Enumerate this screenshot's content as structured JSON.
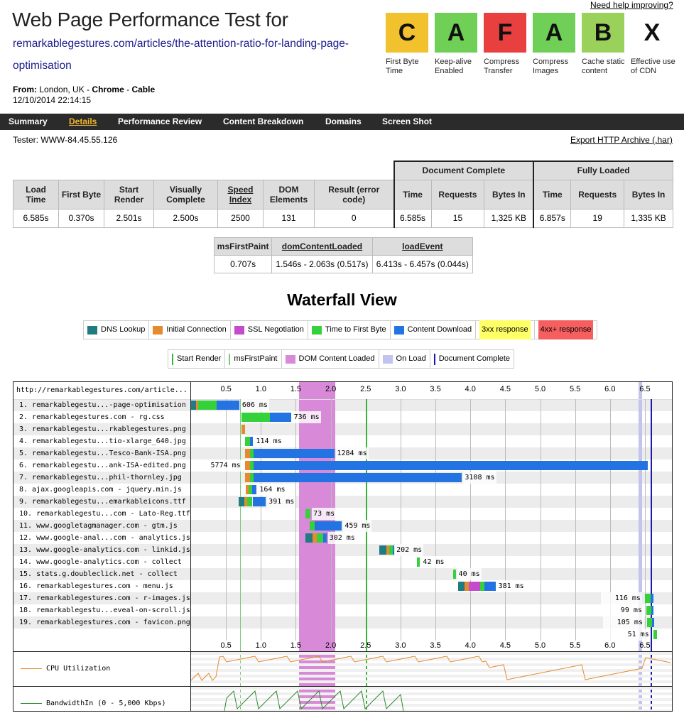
{
  "help_link": "Need help improving?",
  "title": "Web Page Performance Test for",
  "url_line1": "remarkablegestures.com/articles/the-attention-ratio-for-landing-page-",
  "url_line2": "optimisation",
  "from_label": "From:",
  "from_location": "London, UK -",
  "browser": "Chrome",
  "dash": "-",
  "connection": "Cable",
  "datetime": "12/10/2014 22:14:15",
  "grades": [
    {
      "letter": "C",
      "label": "First Byte Time",
      "color": "#f2c12e"
    },
    {
      "letter": "A",
      "label": "Keep-alive Enabled",
      "color": "#6fcf57"
    },
    {
      "letter": "F",
      "label": "Compress Transfer",
      "color": "#e8403f"
    },
    {
      "letter": "A",
      "label": "Compress Images",
      "color": "#6fcf57"
    },
    {
      "letter": "B",
      "label": "Cache static content",
      "color": "#9ad15a"
    },
    {
      "letter": "X",
      "label": "Effective use of CDN",
      "color": "#ffffff"
    }
  ],
  "nav": [
    "Summary",
    "Details",
    "Performance Review",
    "Content Breakdown",
    "Domains",
    "Screen Shot"
  ],
  "nav_active": "Details",
  "tester": "Tester: WWW-84.45.55.126",
  "export": "Export HTTP Archive (.har)",
  "results": {
    "group_doc": "Document Complete",
    "group_full": "Fully Loaded",
    "headers": [
      "Load Time",
      "First Byte",
      "Start Render",
      "Visually Complete",
      "Speed Index",
      "DOM Elements",
      "Result (error code)"
    ],
    "doc_headers": [
      "Time",
      "Requests",
      "Bytes In"
    ],
    "full_headers": [
      "Time",
      "Requests",
      "Bytes In"
    ],
    "values": [
      "6.585s",
      "0.370s",
      "2.501s",
      "2.500s",
      "2500",
      "131",
      "0"
    ],
    "doc_values": [
      "6.585s",
      "15",
      "1,325 KB"
    ],
    "full_values": [
      "6.857s",
      "19",
      "1,335 KB"
    ]
  },
  "timings": {
    "headers": [
      "msFirstPaint",
      "domContentLoaded",
      "loadEvent"
    ],
    "values": [
      "0.707s",
      "1.546s - 2.063s (0.517s)",
      "6.413s - 6.457s (0.044s)"
    ]
  },
  "waterfall_title": "Waterfall View",
  "legend1": [
    {
      "label": "DNS Lookup",
      "color": "#1f7c83"
    },
    {
      "label": "Initial Connection",
      "color": "#e68a2e"
    },
    {
      "label": "SSL Negotiation",
      "color": "#c44ccc"
    },
    {
      "label": "Time to First Byte",
      "color": "#35d13b"
    },
    {
      "label": "Content Download",
      "color": "#2374e2"
    },
    {
      "label": "3xx response",
      "color": "#ffff66"
    },
    {
      "label": "4xx+ response",
      "color": "#f55f5f"
    }
  ],
  "legend2": [
    {
      "label": "Start Render",
      "color": "#37b337"
    },
    {
      "label": "msFirstPaint",
      "color": "#7ec97e"
    },
    {
      "label": "DOM Content Loaded",
      "color": "#d88ad8"
    },
    {
      "label": "On Load",
      "color": "#c3c3ef"
    },
    {
      "label": "Document Complete",
      "color": "#1b1ba8"
    }
  ],
  "waterfall": {
    "url_header": "http://remarkablegestures.com/article...",
    "ticks": [
      "0.5",
      "1.0",
      "1.5",
      "2.0",
      "2.5",
      "3.0",
      "3.5",
      "4.0",
      "4.5",
      "5.0",
      "5.5",
      "6.0",
      "6.5"
    ],
    "rows": [
      {
        "label": "1. remarkablegestu...-page-optimisation",
        "start": 0.0,
        "dns": 0.07,
        "conn": 0.03,
        "ttfb": 0.27,
        "dl": 0.32,
        "ms": "606 ms",
        "lab_side": "right"
      },
      {
        "label": "2. remarkablegestures.com - rg.css",
        "start": 0.72,
        "dns": 0,
        "conn": 0,
        "ttfb": 0.41,
        "dl": 0.3,
        "ms": "736 ms",
        "lab_side": "right"
      },
      {
        "label": "3. remarkablegestu...rkablegestures.png",
        "start": 0.72,
        "dns": 0,
        "conn": 0.05,
        "ttfb": 0,
        "dl": 0,
        "ms": "",
        "lab_side": "right"
      },
      {
        "label": "4. remarkablegestu...tio-xlarge_640.jpg",
        "start": 0.77,
        "dns": 0,
        "conn": 0,
        "ttfb": 0.07,
        "dl": 0.05,
        "ms": "114 ms",
        "lab_side": "right"
      },
      {
        "label": "5. remarkablegestu...Tesco-Bank-ISA.png",
        "start": 0.77,
        "dns": 0,
        "conn": 0.07,
        "ttfb": 0.06,
        "dl": 1.15,
        "ms": "1284 ms",
        "lab_side": "right"
      },
      {
        "label": "6. remarkablegestu...ank-ISA-edited.png",
        "start": 0.77,
        "dns": 0,
        "conn": 0.07,
        "ttfb": 0.06,
        "dl": 5.64,
        "ms": "5774 ms",
        "lab_side": "left"
      },
      {
        "label": "7. remarkablegestu...phil-thornley.jpg",
        "start": 0.77,
        "dns": 0,
        "conn": 0.07,
        "ttfb": 0.06,
        "dl": 2.98,
        "ms": "3108 ms",
        "lab_side": "right"
      },
      {
        "label": "8. ajax.googleapis.com - jquery.min.js",
        "start": 0.78,
        "dns": 0,
        "conn": 0.04,
        "ttfb": 0.05,
        "dl": 0.07,
        "ms": "164 ms",
        "lab_side": "right"
      },
      {
        "label": "9. remarkablegestu...emarkableicons.ttf",
        "start": 0.68,
        "dns": 0.08,
        "conn": 0.04,
        "ttfb": 0.08,
        "dl": 0.19,
        "ms": "391 ms",
        "lab_side": "right"
      },
      {
        "label": "10. remarkablegestu...com - Lato-Reg.ttf",
        "start": 1.64,
        "dns": 0,
        "conn": 0,
        "ttfb": 0.07,
        "dl": 0,
        "ms": "73 ms",
        "lab_side": "right"
      },
      {
        "label": "11. www.googletagmanager.com - gtm.js",
        "start": 1.7,
        "dns": 0,
        "conn": 0,
        "ttfb": 0.07,
        "dl": 0.39,
        "ms": "459 ms",
        "lab_side": "right"
      },
      {
        "label": "12. www.google-anal...com - analytics.js",
        "start": 1.64,
        "dns": 0.1,
        "conn": 0.06,
        "ttfb": 0.09,
        "dl": 0.05,
        "ms": "302 ms",
        "lab_side": "right"
      },
      {
        "label": "13. www.google-analytics.com - linkid.js",
        "start": 2.7,
        "dns": 0.1,
        "conn": 0.04,
        "ttfb": 0.05,
        "dl": 0.01,
        "ms": "202 ms",
        "lab_side": "right"
      },
      {
        "label": "14. www.google-analytics.com - collect",
        "start": 3.24,
        "dns": 0,
        "conn": 0,
        "ttfb": 0.04,
        "dl": 0,
        "ms": "42 ms",
        "lab_side": "right"
      },
      {
        "label": "15. stats.g.doubleclick.net - collect",
        "start": 3.75,
        "dns": 0,
        "conn": 0,
        "ttfb": 0.04,
        "dl": 0,
        "ms": "40 ms",
        "lab_side": "right"
      },
      {
        "label": "16. remarkablegestures.com - menu.js",
        "start": 3.82,
        "dns": 0.1,
        "conn": 0.06,
        "ttfb": 0.06,
        "dl": 0.16,
        "ms": "381 ms",
        "lab_side": "right",
        "ssl": 0.16
      },
      {
        "label": "17. remarkablegestures.com - r-images.js",
        "start": 6.5,
        "dns": 0,
        "conn": 0,
        "ttfb": 0.08,
        "dl": 0.04,
        "ms": "116 ms",
        "lab_side": "left"
      },
      {
        "label": "18. remarkablegestu...eveal-on-scroll.js",
        "start": 6.52,
        "dns": 0,
        "conn": 0,
        "ttfb": 0.07,
        "dl": 0.03,
        "ms": "99 ms",
        "lab_side": "left"
      },
      {
        "label": "19. remarkablegestures.com - favicon.png",
        "start": 6.53,
        "dns": 0,
        "conn": 0,
        "ttfb": 0.07,
        "dl": 0.03,
        "ms": "105 ms",
        "lab_side": "left"
      },
      {
        "label": "",
        "start": 6.62,
        "dns": 0,
        "conn": 0,
        "ttfb": 0.05,
        "dl": 0,
        "ms": "51 ms",
        "lab_side": "left"
      }
    ],
    "cpu_label": "CPU Utilization",
    "bw_label": "BandwidthIn (0 - 5,000 Kbps)",
    "markers": {
      "start_render": 2.5,
      "first_paint": 0.707,
      "dcl_start": 1.546,
      "dcl_end": 2.063,
      "onload_start": 6.413,
      "onload_end": 6.457,
      "doc_complete": 6.585
    }
  }
}
